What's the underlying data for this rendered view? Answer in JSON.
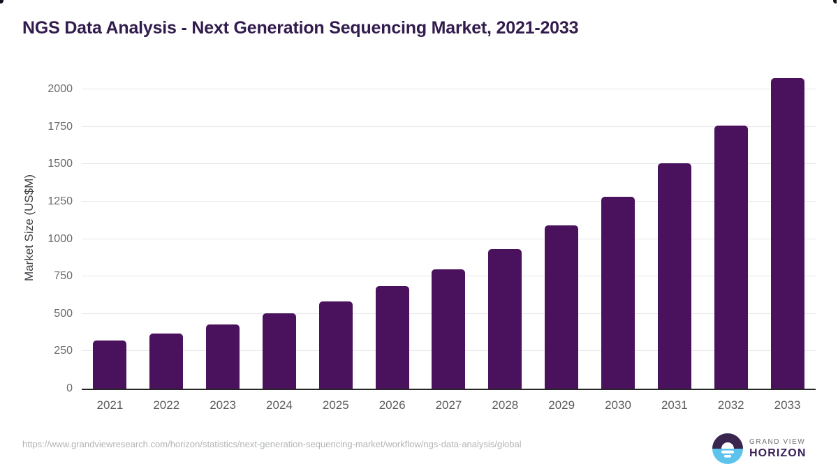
{
  "title": "NGS Data Analysis - Next Generation Sequencing Market, 2021-2033",
  "chart_data": {
    "type": "bar",
    "categories": [
      "2021",
      "2022",
      "2023",
      "2024",
      "2025",
      "2026",
      "2027",
      "2028",
      "2029",
      "2030",
      "2031",
      "2032",
      "2033"
    ],
    "values": [
      320,
      370,
      430,
      505,
      585,
      685,
      800,
      935,
      1090,
      1285,
      1505,
      1760,
      2075
    ],
    "title": "NGS Data Analysis - Next Generation Sequencing Market, 2021-2033",
    "xlabel": "",
    "ylabel": "Market Size (US$M)",
    "ylim": [
      0,
      2150
    ],
    "yticks": [
      0,
      250,
      500,
      750,
      1000,
      1250,
      1500,
      1750,
      2000
    ],
    "grid": true,
    "legend": "none"
  },
  "colors": {
    "bar": "#4A115C",
    "title_text": "#321B4D",
    "gridline": "#E7E7E9",
    "axis_line": "#262626",
    "y_tick_text": "#6A6A6E",
    "x_tick_text": "#5C5C60",
    "url_text": "#B2B4B6",
    "logo_blue": "#5EC3EC",
    "logo_purple": "#39254E",
    "logo_horizon_text": "#3A2057",
    "logo_grandview_text": "#6D6E71"
  },
  "footer": {
    "source_url": "https://www.grandviewresearch.com/horizon/statistics/next-generation-sequencing-market/workflow/ngs-data-analysis/global",
    "logo": {
      "top_text": "GRAND VIEW",
      "bottom_text": "HORIZON"
    }
  }
}
